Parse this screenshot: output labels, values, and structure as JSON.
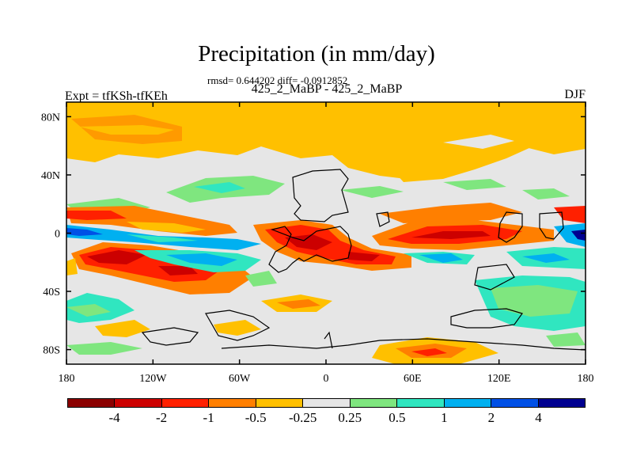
{
  "title": "Precipitation (in mm/day)",
  "stats": "rmsd= 0.644202 diff= -0.0912852",
  "subtitle": "425_2_MaBP - 425_2_MaBP",
  "left_label": "Expt = tfKSh-tfKEh",
  "right_label": "DJF",
  "x_ticks": [
    "180",
    "120W",
    "60W",
    "0",
    "60E",
    "120E",
    "180"
  ],
  "y_ticks": [
    "80N",
    "40N",
    "0",
    "40S",
    "80S"
  ],
  "colorbar": {
    "colors": [
      "#8b0000",
      "#cc0000",
      "#ff2000",
      "#ff7f00",
      "#ffc000",
      "#e6e6e6",
      "#7fe67f",
      "#30e6c0",
      "#00b0f0",
      "#0050e6",
      "#000090"
    ],
    "labels": [
      "-4",
      "-2",
      "-1",
      "-0.5",
      "-0.25",
      "0.25",
      "0.5",
      "1",
      "2",
      "4"
    ]
  }
}
